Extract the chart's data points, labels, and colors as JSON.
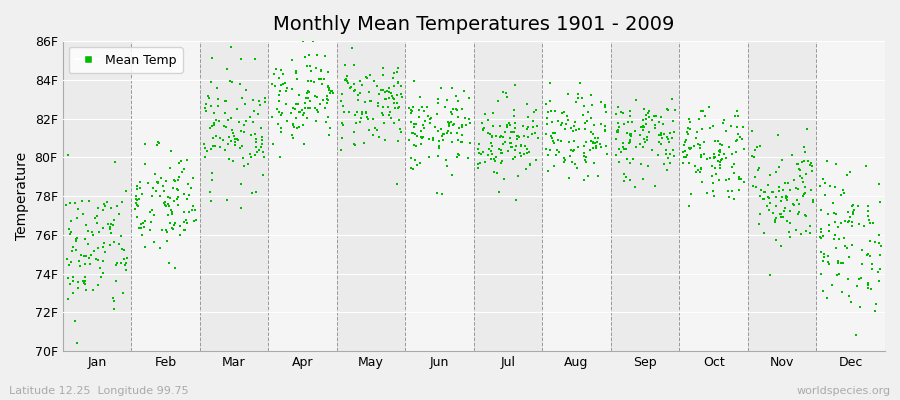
{
  "title": "Monthly Mean Temperatures 1901 - 2009",
  "ylabel": "Temperature",
  "xlabel_labels": [
    "Jan",
    "Feb",
    "Mar",
    "Apr",
    "May",
    "Jun",
    "Jul",
    "Aug",
    "Sep",
    "Oct",
    "Nov",
    "Dec"
  ],
  "ytick_labels": [
    "70F",
    "72F",
    "74F",
    "76F",
    "78F",
    "80F",
    "82F",
    "84F",
    "86F"
  ],
  "ytick_values": [
    70,
    72,
    74,
    76,
    78,
    80,
    82,
    84,
    86
  ],
  "ylim": [
    70,
    86
  ],
  "dot_color": "#00bb00",
  "bg_color": "#f0f0f0",
  "plot_bg_even": "#ebebeb",
  "plot_bg_odd": "#f5f5f5",
  "legend_label": "Mean Temp",
  "footnote_left": "Latitude 12.25  Longitude 99.75",
  "footnote_right": "worldspecies.org",
  "monthly_means": [
    75.2,
    77.5,
    81.5,
    83.2,
    82.8,
    81.3,
    81.0,
    81.0,
    81.0,
    80.3,
    78.2,
    75.8
  ],
  "monthly_stds": [
    1.8,
    1.5,
    1.5,
    1.2,
    1.2,
    1.1,
    1.1,
    1.1,
    1.1,
    1.3,
    1.5,
    1.9
  ],
  "n_years": 109,
  "title_fontsize": 14,
  "axis_fontsize": 10,
  "tick_fontsize": 9,
  "legend_fontsize": 9,
  "footnote_fontsize": 8
}
